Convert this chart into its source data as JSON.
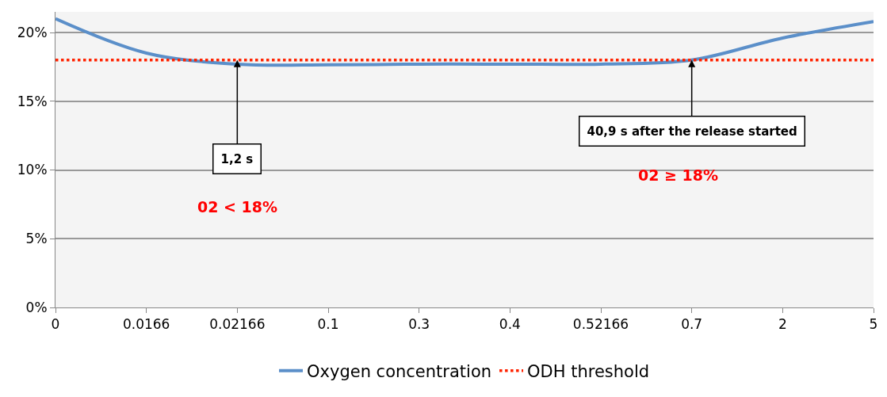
{
  "chart_data": {
    "type": "line",
    "categories": [
      "0",
      "0.0166",
      "0.02166",
      "0.1",
      "0.3",
      "0.4",
      "0.52166",
      "0.7",
      "2",
      "5"
    ],
    "series": [
      {
        "name": "Oxygen concentration",
        "color": "#5b8fc9",
        "values": [
          21.0,
          18.5,
          17.7,
          17.65,
          17.7,
          17.7,
          17.7,
          18.0,
          19.6,
          20.8
        ]
      }
    ],
    "ylim": [
      0,
      21.5
    ],
    "yticks": [
      {
        "value": 0,
        "label": "0%"
      },
      {
        "value": 5,
        "label": "5%"
      },
      {
        "value": 10,
        "label": "10%"
      },
      {
        "value": 15,
        "label": "15%"
      },
      {
        "value": 20,
        "label": "20%"
      }
    ],
    "ref_lines": [
      {
        "axis": "y",
        "value": 18,
        "label": "ODH threshold",
        "color": "#ff2200",
        "line_style": "dotted"
      }
    ],
    "annotations": [
      {
        "text": "1,2 s",
        "x": "0.02166",
        "y": 18
      },
      {
        "text": "40,9 s after the release started",
        "x": "0.7",
        "y": 18
      },
      "02 < 18%",
      "02 ≥ 18%"
    ],
    "grid": "y",
    "legend": "bottom",
    "line_style": "solid",
    "marker": "none"
  }
}
